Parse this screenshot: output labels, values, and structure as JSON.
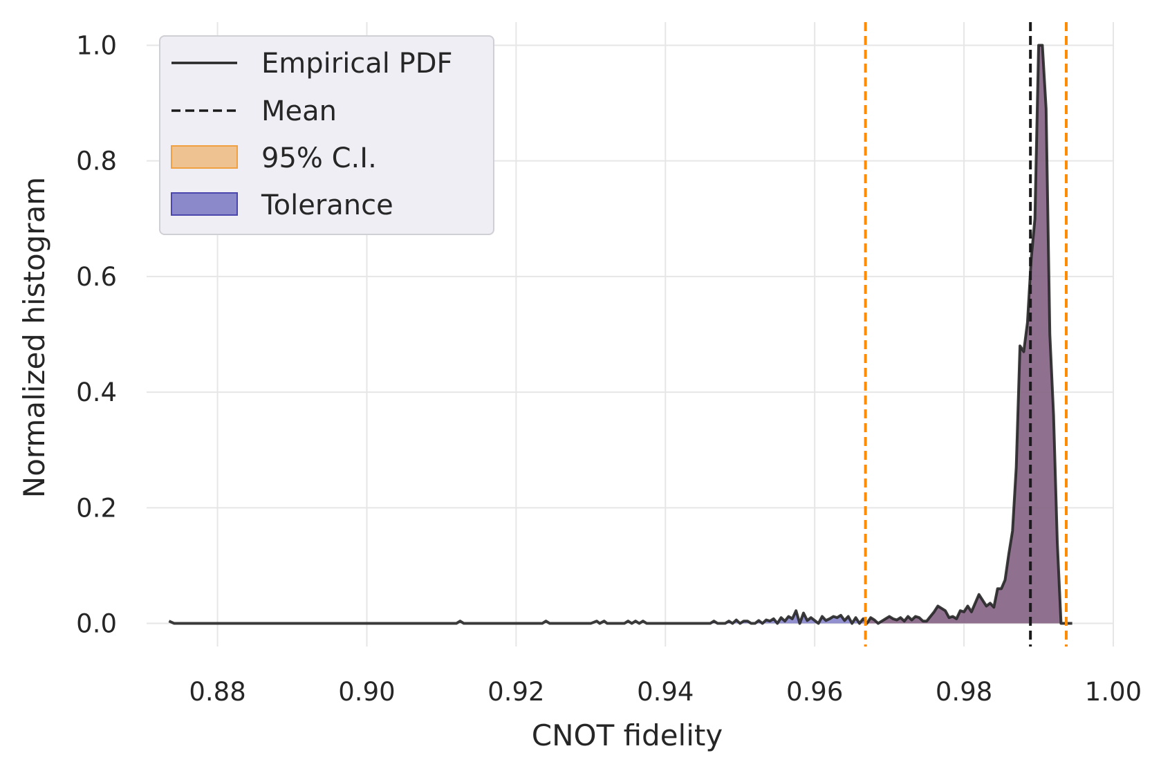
{
  "chart_data": {
    "type": "line",
    "title": "",
    "xlabel": "CNOT fidelity",
    "ylabel": "Normalized histogram",
    "xlim": [
      0.8705,
      1.0
    ],
    "ylim": [
      -0.04,
      1.04
    ],
    "xticks": [
      0.88,
      0.9,
      0.92,
      0.94,
      0.96,
      0.98,
      1.0
    ],
    "xtick_labels": [
      "0.88",
      "0.90",
      "0.92",
      "0.94",
      "0.96",
      "0.98",
      "1.00"
    ],
    "yticks": [
      0.0,
      0.2,
      0.4,
      0.6,
      0.8,
      1.0
    ],
    "ytick_labels": [
      "0.0",
      "0.2",
      "0.4",
      "0.6",
      "0.8",
      "1.0"
    ],
    "grid": true,
    "legend_position": "top-left",
    "colors": {
      "pdf_line": "#262626",
      "mean_line": "#1a1a1a",
      "ci_line": "#ff8c00",
      "ci_fill": "#f0a040",
      "tolerance_fill": "#4a46ad",
      "overlap_fill": "#8e6b82",
      "grid": "#e6e6e6",
      "legend_bg": "#eeeef4"
    },
    "legend": [
      {
        "label": "Empirical PDF",
        "kind": "solid-line"
      },
      {
        "label": "Mean",
        "kind": "dashed-line"
      },
      {
        "label": "95% C.I.",
        "kind": "ci-patch"
      },
      {
        "label": "Tolerance",
        "kind": "tolerance-patch"
      }
    ],
    "mean": 0.9889,
    "ci": [
      0.9668,
      0.9937
    ],
    "tolerance_start": 0.9405,
    "series": [
      {
        "name": "Empirical PDF",
        "x": [
          0.8735,
          0.8742,
          0.875,
          0.88,
          0.89,
          0.9,
          0.91,
          0.912,
          0.9125,
          0.913,
          0.92,
          0.9235,
          0.924,
          0.9245,
          0.93,
          0.9308,
          0.9312,
          0.9318,
          0.9322,
          0.9326,
          0.933,
          0.9345,
          0.935,
          0.9355,
          0.936,
          0.9365,
          0.937,
          0.9375,
          0.94,
          0.944,
          0.946,
          0.9465,
          0.947,
          0.9475,
          0.948,
          0.9485,
          0.949,
          0.9495,
          0.95,
          0.9505,
          0.951,
          0.9515,
          0.952,
          0.9525,
          0.953,
          0.9535,
          0.954,
          0.9545,
          0.955,
          0.9555,
          0.956,
          0.9565,
          0.957,
          0.9575,
          0.958,
          0.9585,
          0.959,
          0.9595,
          0.96,
          0.9605,
          0.961,
          0.9615,
          0.962,
          0.9625,
          0.963,
          0.9635,
          0.964,
          0.9645,
          0.965,
          0.9655,
          0.966,
          0.9665,
          0.967,
          0.9675,
          0.968,
          0.9685,
          0.969,
          0.9695,
          0.97,
          0.9705,
          0.971,
          0.9715,
          0.972,
          0.9725,
          0.973,
          0.9735,
          0.974,
          0.9745,
          0.975,
          0.9755,
          0.976,
          0.9765,
          0.977,
          0.9775,
          0.978,
          0.9785,
          0.979,
          0.9795,
          0.98,
          0.9805,
          0.981,
          0.9815,
          0.982,
          0.9825,
          0.983,
          0.9835,
          0.984,
          0.9845,
          0.985,
          0.9855,
          0.986,
          0.9865,
          0.987,
          0.9875,
          0.988,
          0.9885,
          0.989,
          0.9895,
          0.99,
          0.9905,
          0.991,
          0.9915,
          0.992,
          0.9925,
          0.993,
          0.9935,
          0.994,
          0.9945
        ],
        "y": [
          0.004,
          0.0,
          0.0,
          0.0,
          0.0,
          0.0,
          0.0,
          0.0,
          0.004,
          0.0,
          0.0,
          0.0,
          0.004,
          0.0,
          0.0,
          0.004,
          0.0,
          0.004,
          0.0,
          0.0,
          0.0,
          0.0,
          0.004,
          0.0,
          0.004,
          0.0,
          0.004,
          0.0,
          0.0,
          0.0,
          0.0,
          0.004,
          0.0,
          0.0,
          0.0,
          0.004,
          0.0,
          0.006,
          0.0,
          0.004,
          0.004,
          0.0,
          0.0,
          0.005,
          0.0,
          0.006,
          0.004,
          0.008,
          0.0,
          0.01,
          0.004,
          0.012,
          0.008,
          0.022,
          0.0,
          0.018,
          0.005,
          0.01,
          0.005,
          0.0,
          0.012,
          0.005,
          0.008,
          0.012,
          0.01,
          0.014,
          0.005,
          0.012,
          0.0,
          0.01,
          0.0,
          0.008,
          0.0,
          0.01,
          0.006,
          0.0,
          0.004,
          0.008,
          0.012,
          0.008,
          0.006,
          0.01,
          0.004,
          0.012,
          0.006,
          0.012,
          0.01,
          0.004,
          0.004,
          0.012,
          0.02,
          0.03,
          0.026,
          0.022,
          0.01,
          0.012,
          0.008,
          0.022,
          0.02,
          0.03,
          0.02,
          0.035,
          0.05,
          0.04,
          0.03,
          0.035,
          0.028,
          0.06,
          0.06,
          0.075,
          0.12,
          0.16,
          0.27,
          0.48,
          0.47,
          0.52,
          0.63,
          0.7,
          1.0,
          1.0,
          0.89,
          0.5,
          0.36,
          0.14,
          0.0,
          0.0,
          0.0,
          0.0
        ]
      }
    ]
  }
}
